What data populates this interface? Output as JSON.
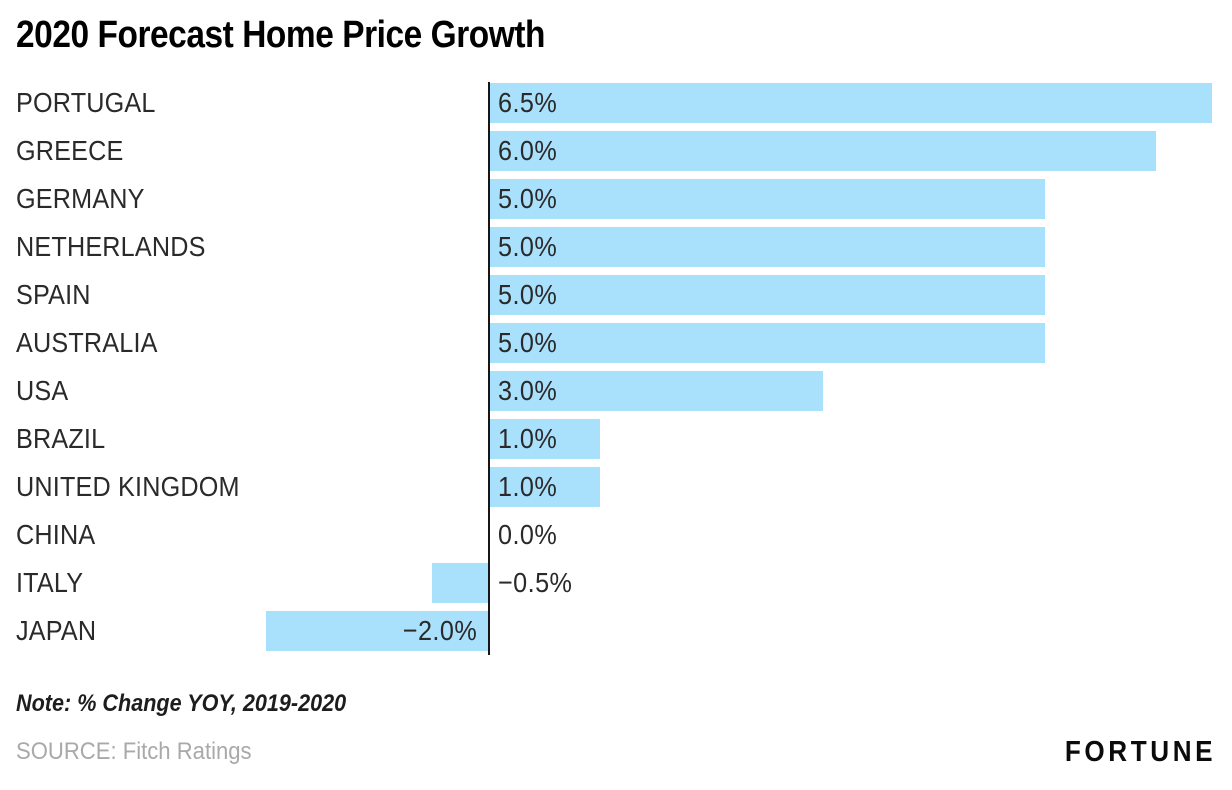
{
  "title": "2020 Forecast Home Price Growth",
  "note": "Note: % Change YOY, 2019-2020",
  "source": "SOURCE: Fitch Ratings",
  "brand": "FORTUNE",
  "colors": {
    "bar": "#a9e0fb",
    "axis": "#161616",
    "title_text": "#000000",
    "label_text": "#2b2a2b",
    "note_text": "#1d1d1d",
    "source_text": "#a9a9a9",
    "background": "#ffffff"
  },
  "chart_data": {
    "type": "bar",
    "orientation": "horizontal",
    "title": "2020 Forecast Home Price Growth",
    "xlabel": "",
    "ylabel": "",
    "unit": "%",
    "baseline": 0,
    "xlim": [
      -2.0,
      6.5
    ],
    "grid": false,
    "legend": null,
    "categories": [
      "PORTUGAL",
      "GREECE",
      "GERMANY",
      "NETHERLANDS",
      "SPAIN",
      "AUSTRALIA",
      "USA",
      "BRAZIL",
      "UNITED KINGDOM",
      "CHINA",
      "ITALY",
      "JAPAN"
    ],
    "values": [
      6.5,
      6.0,
      5.0,
      5.0,
      5.0,
      5.0,
      3.0,
      1.0,
      1.0,
      0.0,
      -0.5,
      -2.0
    ],
    "value_labels": [
      "6.5%",
      "6.0%",
      "5.0%",
      "5.0%",
      "5.0%",
      "5.0%",
      "3.0%",
      "1.0%",
      "1.0%",
      "0.0%",
      "−0.5%",
      "−2.0%"
    ]
  }
}
